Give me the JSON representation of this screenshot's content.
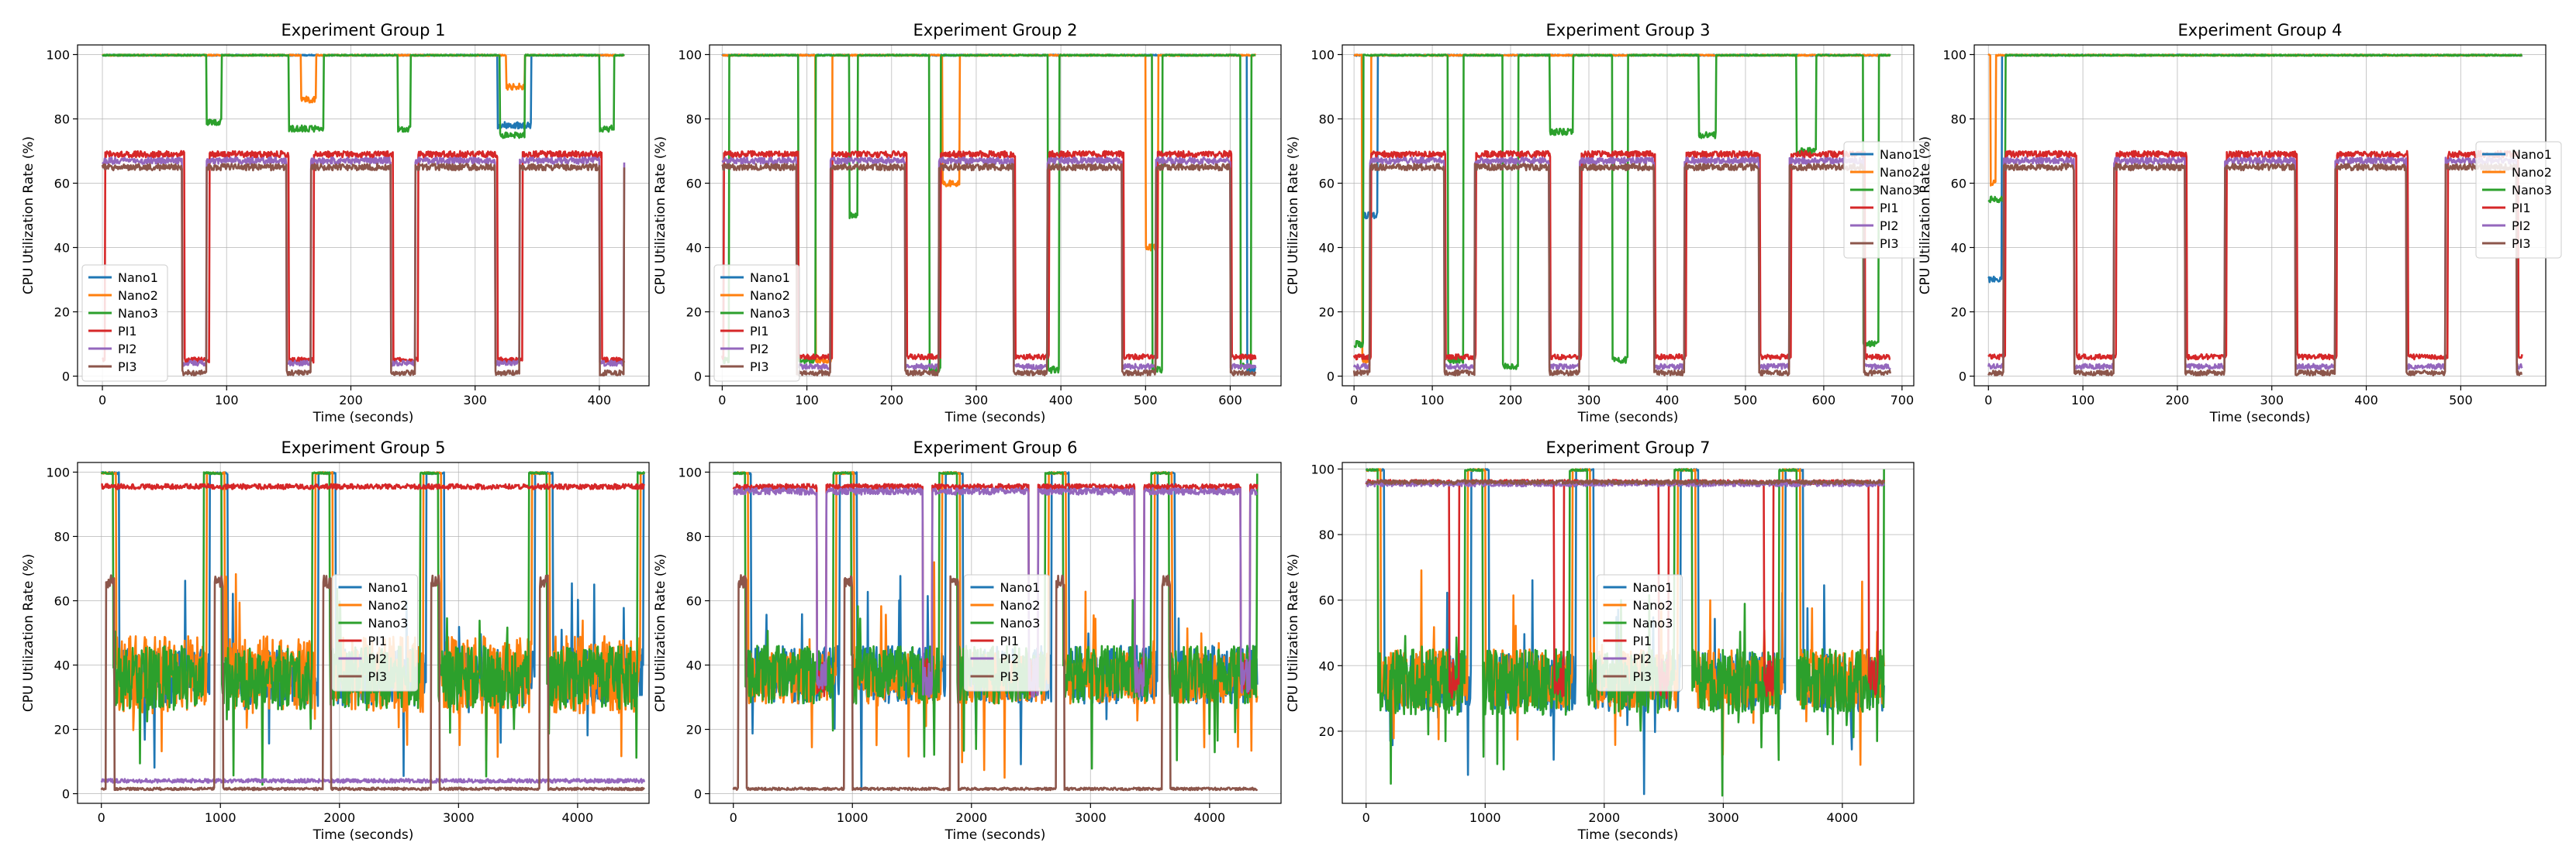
{
  "chart_data": [
    {
      "type": "line",
      "title": "Experiment Group 1",
      "xlabel": "Time (seconds)",
      "ylabel": "CPU Utilization Rate (%)",
      "xlim": [
        -20,
        440
      ],
      "ylim": [
        -3,
        103
      ],
      "xticks": [
        0,
        100,
        200,
        300,
        400
      ],
      "yticks": [
        0,
        20,
        40,
        60,
        80,
        100
      ],
      "grid": true,
      "legend": "lower-left",
      "duration": 420,
      "period": 84,
      "on_duration": 64,
      "high_level": 100,
      "low_level": 2,
      "series": [
        {
          "name": "Nano1",
          "color": "#1f77b4",
          "pattern": "high",
          "base": 100,
          "dips": [
            [
              318,
              345,
              78
            ]
          ]
        },
        {
          "name": "Nano2",
          "color": "#ff7f0e",
          "pattern": "high",
          "base": 100,
          "dips": [
            [
              160,
              172,
              86
            ],
            [
              325,
              340,
              90
            ]
          ]
        },
        {
          "name": "Nano3",
          "color": "#2ca02c",
          "pattern": "high",
          "base": 100,
          "dips": [
            [
              84,
              96,
              79
            ],
            [
              150,
              178,
              77
            ],
            [
              238,
              248,
              77
            ],
            [
              320,
              340,
              75
            ],
            [
              400,
              412,
              77
            ]
          ]
        },
        {
          "name": "PI1",
          "color": "#d62728",
          "pattern": "square",
          "on": 69,
          "off": 5,
          "phase": 2
        },
        {
          "name": "PI2",
          "color": "#9467bd",
          "pattern": "square",
          "on": 67,
          "off": 4,
          "phase": 0
        },
        {
          "name": "PI3",
          "color": "#8c564b",
          "pattern": "square",
          "on": 65,
          "off": 1,
          "phase": 0
        }
      ]
    },
    {
      "type": "line",
      "title": "Experiment Group 2",
      "xlabel": "Time (seconds)",
      "ylabel": "CPU Utilization Rate (%)",
      "xlim": [
        -15,
        660
      ],
      "ylim": [
        -3,
        103
      ],
      "xticks": [
        0,
        100,
        200,
        300,
        400,
        500,
        600
      ],
      "yticks": [
        0,
        20,
        40,
        60,
        80,
        100
      ],
      "grid": true,
      "legend": "lower-left",
      "duration": 630,
      "period": 128,
      "on_duration": 88,
      "high_level": 100,
      "low_level": 2,
      "series": [
        {
          "name": "Nano1",
          "color": "#1f77b4",
          "pattern": "high",
          "base": 100,
          "dips": [
            [
              620,
              630,
              2
            ]
          ]
        },
        {
          "name": "Nano2",
          "color": "#ff7f0e",
          "pattern": "high",
          "base": 100,
          "dips": [
            [
              110,
              130,
              5
            ],
            [
              260,
              280,
              60
            ],
            [
              500,
              515,
              40
            ]
          ]
        },
        {
          "name": "Nano3",
          "color": "#2ca02c",
          "pattern": "high",
          "base": 100,
          "dips": [
            [
              0,
              8,
              5
            ],
            [
              90,
              110,
              5
            ],
            [
              150,
              160,
              50
            ],
            [
              245,
              258,
              2
            ],
            [
              385,
              398,
              2
            ],
            [
              508,
              520,
              2
            ],
            [
              612,
              625,
              3
            ]
          ]
        },
        {
          "name": "PI1",
          "color": "#d62728",
          "pattern": "square",
          "on": 69,
          "off": 6,
          "phase": 2
        },
        {
          "name": "PI2",
          "color": "#9467bd",
          "pattern": "square",
          "on": 67,
          "off": 3,
          "phase": 0
        },
        {
          "name": "PI3",
          "color": "#8c564b",
          "pattern": "square",
          "on": 65,
          "off": 1,
          "phase": 0
        }
      ]
    },
    {
      "type": "line",
      "title": "Experiment Group 3",
      "xlabel": "Time (seconds)",
      "ylabel": "CPU Utilization Rate (%)",
      "xlim": [
        -15,
        715
      ],
      "ylim": [
        -3,
        103
      ],
      "xticks": [
        0,
        100,
        200,
        300,
        400,
        500,
        600,
        700
      ],
      "yticks": [
        0,
        20,
        40,
        60,
        80,
        100
      ],
      "grid": true,
      "legend": "center-right",
      "duration": 685,
      "period": 134,
      "on_duration": 95,
      "high_level": 100,
      "low_level": 2,
      "series": [
        {
          "name": "Nano1",
          "color": "#1f77b4",
          "pattern": "high",
          "base": 100,
          "dips": [
            [
              10,
              30,
              50
            ]
          ]
        },
        {
          "name": "Nano2",
          "color": "#ff7f0e",
          "pattern": "high",
          "base": 100,
          "dips": [
            [
              10,
              22,
              5
            ]
          ]
        },
        {
          "name": "Nano3",
          "color": "#2ca02c",
          "pattern": "high",
          "base": 100,
          "dips": [
            [
              0,
              12,
              10
            ],
            [
              120,
              140,
              5
            ],
            [
              190,
              210,
              3
            ],
            [
              250,
              280,
              76
            ],
            [
              330,
              350,
              5
            ],
            [
              440,
              462,
              75
            ],
            [
              565,
              590,
              70
            ],
            [
              650,
              670,
              10
            ]
          ]
        },
        {
          "name": "PI1",
          "color": "#d62728",
          "pattern": "square",
          "on": 69,
          "off": 6,
          "phase": 22
        },
        {
          "name": "PI2",
          "color": "#9467bd",
          "pattern": "square",
          "on": 67,
          "off": 3,
          "phase": 20
        },
        {
          "name": "PI3",
          "color": "#8c564b",
          "pattern": "square",
          "on": 65,
          "off": 1,
          "phase": 20
        }
      ]
    },
    {
      "type": "line",
      "title": "Experiment Group 4",
      "xlabel": "Time (seconds)",
      "ylabel": "CPU Utilization Rate (%)",
      "xlim": [
        -15,
        590
      ],
      "ylim": [
        -3,
        103
      ],
      "xticks": [
        0,
        100,
        200,
        300,
        400,
        500
      ],
      "yticks": [
        0,
        20,
        40,
        60,
        80,
        100
      ],
      "grid": true,
      "legend": "center-right",
      "duration": 565,
      "period": 117,
      "on_duration": 75,
      "high_level": 100,
      "low_level": 2,
      "series": [
        {
          "name": "Nano1",
          "color": "#1f77b4",
          "pattern": "high",
          "base": 100,
          "dips": [
            [
              0,
              14,
              30
            ]
          ]
        },
        {
          "name": "Nano2",
          "color": "#ff7f0e",
          "pattern": "high",
          "base": 100,
          "dips": [
            [
              2,
              8,
              60
            ]
          ]
        },
        {
          "name": "Nano3",
          "color": "#2ca02c",
          "pattern": "high",
          "base": 100,
          "dips": [
            [
              0,
              18,
              55
            ]
          ]
        },
        {
          "name": "PI1",
          "color": "#d62728",
          "pattern": "square",
          "on": 69,
          "off": 6,
          "phase": 18
        },
        {
          "name": "PI2",
          "color": "#9467bd",
          "pattern": "square",
          "on": 67,
          "off": 3,
          "phase": 16
        },
        {
          "name": "PI3",
          "color": "#8c564b",
          "pattern": "square",
          "on": 65,
          "off": 1,
          "phase": 16
        }
      ]
    },
    {
      "type": "line",
      "title": "Experiment Group 5",
      "xlabel": "Time (seconds)",
      "ylabel": "CPU Utilization Rate (%)",
      "xlim": [
        -200,
        4600
      ],
      "ylim": [
        -3,
        103
      ],
      "xticks": [
        0,
        1000,
        2000,
        3000,
        4000
      ],
      "yticks": [
        0,
        20,
        40,
        60,
        80,
        100
      ],
      "grid": true,
      "legend": "center",
      "duration": 4560,
      "period": 910,
      "on_duration": 150,
      "high_level": 100,
      "low_level": 2,
      "series": [
        {
          "name": "Nano1",
          "color": "#1f77b4",
          "pattern": "noisy",
          "base": 36,
          "amp": 9,
          "spike": 100,
          "offset": 0
        },
        {
          "name": "Nano2",
          "color": "#ff7f0e",
          "pattern": "noisy",
          "base": 37,
          "amp": 12,
          "spike": 100,
          "offset": 25
        },
        {
          "name": "Nano3",
          "color": "#2ca02c",
          "pattern": "noisy",
          "base": 36,
          "amp": 10,
          "spike": 100,
          "offset": 50
        },
        {
          "name": "PI1",
          "color": "#d62728",
          "pattern": "flat",
          "base": 95.5,
          "amp": 0.8
        },
        {
          "name": "PI2",
          "color": "#9467bd",
          "pattern": "flat",
          "base": 4,
          "amp": 0.6
        },
        {
          "name": "PI3",
          "color": "#8c564b",
          "pattern": "flat_spikes",
          "base": 1.5,
          "amp": 0.4,
          "spike": 66
        }
      ]
    },
    {
      "type": "line",
      "title": "Experiment Group 6",
      "xlabel": "Time (seconds)",
      "ylabel": "CPU Utilization Rate (%)",
      "xlim": [
        -200,
        4600
      ],
      "ylim": [
        -3,
        103
      ],
      "xticks": [
        0,
        1000,
        2000,
        3000,
        4000
      ],
      "yticks": [
        0,
        20,
        40,
        60,
        80,
        100
      ],
      "grid": true,
      "legend": "center",
      "duration": 4400,
      "period": 890,
      "on_duration": 150,
      "high_level": 100,
      "low_level": 2,
      "series": [
        {
          "name": "Nano1",
          "color": "#1f77b4",
          "pattern": "noisy",
          "base": 37,
          "amp": 9,
          "spike": 100,
          "offset": 0
        },
        {
          "name": "Nano2",
          "color": "#ff7f0e",
          "pattern": "noisy",
          "base": 36,
          "amp": 8,
          "spike": 100,
          "offset": 25
        },
        {
          "name": "Nano3",
          "color": "#2ca02c",
          "pattern": "noisy",
          "base": 37,
          "amp": 9,
          "spike": 100,
          "offset": 50
        },
        {
          "name": "PI1",
          "color": "#d62728",
          "pattern": "flat_dips",
          "base": 95.5,
          "amp": 0.8,
          "dip": 30
        },
        {
          "name": "PI2",
          "color": "#9467bd",
          "pattern": "flat_dips",
          "base": 94,
          "amp": 1.0,
          "dip": 30
        },
        {
          "name": "PI3",
          "color": "#8c564b",
          "pattern": "flat_spikes",
          "base": 1.5,
          "amp": 0.4,
          "spike": 66
        }
      ]
    },
    {
      "type": "line",
      "title": "Experiment Group 7",
      "xlabel": "Time (seconds)",
      "ylabel": "CPU Utilization Rate (%)",
      "xlim": [
        -200,
        4600
      ],
      "ylim": [
        -2,
        102
      ],
      "xticks": [
        0,
        1000,
        2000,
        3000,
        4000
      ],
      "yticks": [
        20,
        40,
        60,
        80,
        100
      ],
      "grid": true,
      "legend": "center",
      "duration": 4350,
      "period": 880,
      "on_duration": 150,
      "high_level": 100,
      "low_level": 2,
      "series": [
        {
          "name": "Nano1",
          "color": "#1f77b4",
          "pattern": "noisy",
          "base": 35,
          "amp": 9,
          "spike": 100,
          "offset": 0
        },
        {
          "name": "Nano2",
          "color": "#ff7f0e",
          "pattern": "noisy",
          "base": 36,
          "amp": 9,
          "spike": 100,
          "offset": 25
        },
        {
          "name": "Nano3",
          "color": "#2ca02c",
          "pattern": "noisy",
          "base": 35,
          "amp": 10,
          "spike": 100,
          "offset": 50
        },
        {
          "name": "PI1",
          "color": "#d62728",
          "pattern": "flat_dips",
          "base": 96,
          "amp": 0.7,
          "dip": 30
        },
        {
          "name": "PI2",
          "color": "#9467bd",
          "pattern": "flat",
          "base": 95.5,
          "amp": 0.8
        },
        {
          "name": "PI3",
          "color": "#8c564b",
          "pattern": "flat",
          "base": 96,
          "amp": 0.6
        }
      ]
    }
  ]
}
